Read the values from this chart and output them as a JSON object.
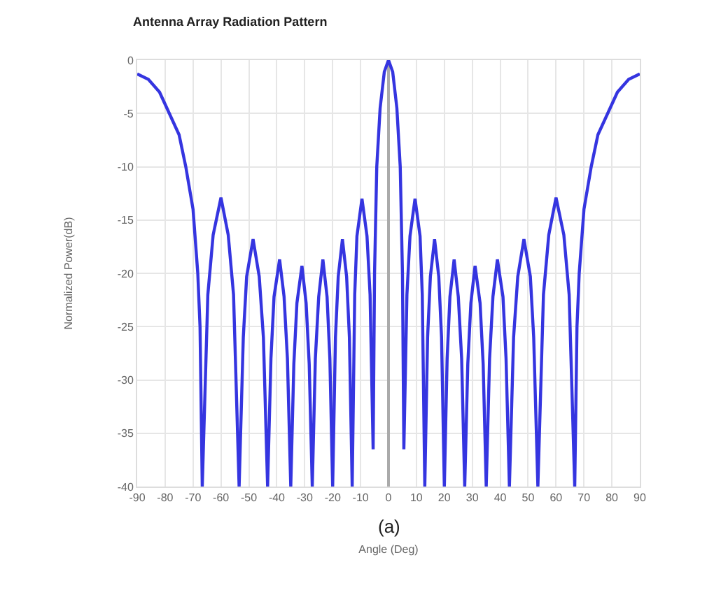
{
  "chart_data": {
    "type": "line",
    "title": "Antenna Array Radiation Pattern",
    "xlabel": "Angle (Deg)",
    "ylabel": "Normalized Power(dB)",
    "annotations": [
      "(a)"
    ],
    "x": [
      -90,
      -86,
      -82,
      -78.5,
      -75,
      -72.6,
      -70,
      -68.3,
      -67.5,
      -66.7,
      -64.7,
      -62.8,
      -60,
      -57.4,
      -55.5,
      -53.5,
      -52,
      -50.8,
      -48.5,
      -46.3,
      -44.8,
      -43.3,
      -42.1,
      -41,
      -39,
      -37.4,
      -36.2,
      -35,
      -33.9,
      -32.8,
      -31,
      -29.5,
      -28.4,
      -27.3,
      -26.2,
      -25,
      -23.5,
      -22,
      -21,
      -20,
      -19,
      -18,
      -16.5,
      -15,
      -14,
      -13,
      -12.1,
      -11.3,
      -9.5,
      -7.7,
      -6.6,
      -5.5,
      -5,
      -4.2,
      -3,
      -1.5,
      0,
      1.5,
      3,
      4.2,
      5,
      5.5,
      6.6,
      7.7,
      9.5,
      11.3,
      12.1,
      13,
      14,
      15,
      16.5,
      18,
      19,
      20,
      21,
      22,
      23.5,
      25,
      26.2,
      27.3,
      28.4,
      29.5,
      31,
      32.8,
      33.9,
      35,
      36.2,
      37.4,
      39,
      41,
      42.1,
      43.3,
      44.8,
      46.3,
      48.5,
      50.8,
      52,
      53.5,
      55.5,
      57.4,
      60,
      62.8,
      64.7,
      66.7,
      67.5,
      68.3,
      70,
      72.6,
      75,
      78.5,
      82,
      86,
      90
    ],
    "series": [
      {
        "color": "#3535e0",
        "values": [
          -1.3,
          -1.8,
          -3,
          -5,
          -7,
          -10,
          -14,
          -20,
          -25,
          -40,
          -22,
          -16.4,
          -12.9,
          -16.4,
          -22,
          -40,
          -26,
          -20.3,
          -16.8,
          -20.3,
          -26,
          -40,
          -28,
          -22.2,
          -18.7,
          -22.2,
          -28,
          -40,
          -28.5,
          -22.8,
          -19.3,
          -22.8,
          -28.5,
          -40,
          -28,
          -22.2,
          -18.7,
          -22.2,
          -28,
          -40,
          -26,
          -20.3,
          -16.8,
          -20.3,
          -26,
          -40,
          -22,
          -16.5,
          -13,
          -16.5,
          -22,
          -36.5,
          -20,
          -10,
          -4.5,
          -1.1,
          0,
          -1.1,
          -4.5,
          -10,
          -20,
          -36.5,
          -22,
          -16.5,
          -13,
          -16.5,
          -22,
          -40,
          -26,
          -20.3,
          -16.8,
          -20.3,
          -26,
          -40,
          -28,
          -22.2,
          -18.7,
          -22.2,
          -28,
          -40,
          -28.5,
          -22.8,
          -19.3,
          -22.8,
          -28.5,
          -40,
          -28,
          -22.2,
          -18.7,
          -22.2,
          -28,
          -40,
          -26,
          -20.3,
          -16.8,
          -20.3,
          -26,
          -40,
          -22,
          -16.4,
          -12.9,
          -16.4,
          -22,
          -40,
          -25,
          -20,
          -14,
          -10,
          -7,
          -5,
          -3,
          -1.8,
          -1.3
        ]
      }
    ],
    "xlim": [
      -90,
      90
    ],
    "ylim": [
      -40,
      0
    ],
    "xticks": [
      -90,
      -80,
      -70,
      -60,
      -50,
      -40,
      -30,
      -20,
      -10,
      0,
      10,
      20,
      30,
      40,
      50,
      60,
      70,
      80,
      90
    ],
    "yticks": [
      0,
      -5,
      -10,
      -15,
      -20,
      -25,
      -30,
      -35,
      -40
    ],
    "grid": true,
    "line_style": "solid",
    "marker": "none"
  }
}
